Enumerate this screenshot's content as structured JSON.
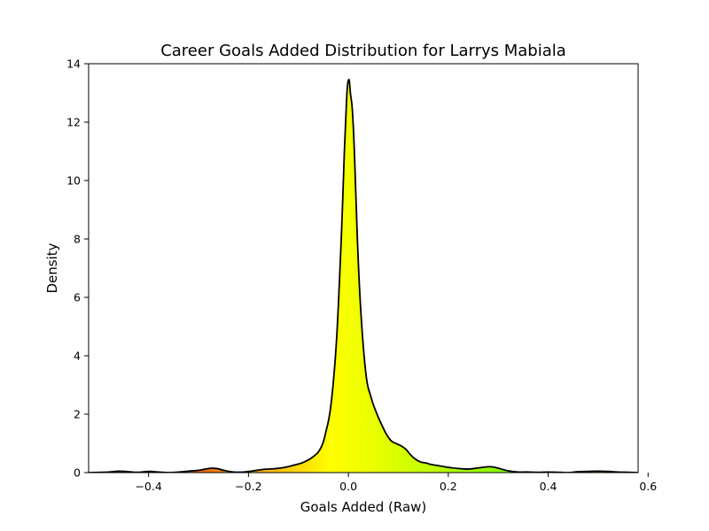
{
  "chart_data": {
    "type": "area",
    "title": "Career Goals Added Distribution for Larrys Mabiala",
    "xlabel": "Goals Added (Raw)",
    "ylabel": "Density",
    "xlim": [
      -0.52,
      0.58
    ],
    "ylim": [
      0,
      14
    ],
    "xticks": [
      -0.4,
      -0.2,
      0.0,
      0.2,
      0.4,
      0.6
    ],
    "xtick_labels": [
      "−0.4",
      "−0.2",
      "0.0",
      "0.2",
      "0.4",
      "0.6"
    ],
    "yticks": [
      0,
      2,
      4,
      6,
      8,
      10,
      12,
      14
    ],
    "ytick_labels": [
      "0",
      "2",
      "4",
      "6",
      "8",
      "10",
      "12",
      "14"
    ],
    "grid": false,
    "legend": "none",
    "fill_gradient": "orange-yellow-green (by x value)",
    "line_color": "#000000",
    "series": [
      {
        "x": [
          -0.52,
          -0.48,
          -0.46,
          -0.44,
          -0.42,
          -0.4,
          -0.38,
          -0.36,
          -0.34,
          -0.32,
          -0.3,
          -0.28,
          -0.27,
          -0.26,
          -0.25,
          -0.23,
          -0.21,
          -0.19,
          -0.17,
          -0.15,
          -0.13,
          -0.11,
          -0.09,
          -0.07,
          -0.055,
          -0.045,
          -0.035,
          -0.025,
          -0.018,
          -0.012,
          -0.008,
          -0.004,
          -0.002,
          0.0,
          0.002,
          0.004,
          0.008,
          0.012,
          0.018,
          0.025,
          0.035,
          0.045,
          0.055,
          0.065,
          0.075,
          0.085,
          0.095,
          0.105,
          0.115,
          0.125,
          0.135,
          0.145,
          0.155,
          0.165,
          0.18,
          0.2,
          0.22,
          0.24,
          0.26,
          0.28,
          0.29,
          0.3,
          0.32,
          0.34,
          0.36,
          0.38,
          0.4,
          0.42,
          0.44,
          0.46,
          0.48,
          0.5,
          0.52,
          0.54,
          0.56,
          0.58
        ],
        "y": [
          0.0,
          0.02,
          0.05,
          0.03,
          0.01,
          0.04,
          0.02,
          0.0,
          0.02,
          0.05,
          0.08,
          0.14,
          0.15,
          0.13,
          0.08,
          0.02,
          0.02,
          0.06,
          0.11,
          0.13,
          0.17,
          0.25,
          0.35,
          0.55,
          0.85,
          1.4,
          2.3,
          4.2,
          6.5,
          9.0,
          11.0,
          12.6,
          13.2,
          13.43,
          13.4,
          13.0,
          12.4,
          11.0,
          8.0,
          5.5,
          3.4,
          2.6,
          2.1,
          1.7,
          1.35,
          1.1,
          1.0,
          0.92,
          0.8,
          0.6,
          0.45,
          0.36,
          0.33,
          0.28,
          0.24,
          0.18,
          0.14,
          0.12,
          0.16,
          0.2,
          0.19,
          0.15,
          0.06,
          0.02,
          0.02,
          0.01,
          0.02,
          0.01,
          0.0,
          0.03,
          0.04,
          0.05,
          0.04,
          0.02,
          0.01,
          0.0
        ]
      }
    ]
  }
}
